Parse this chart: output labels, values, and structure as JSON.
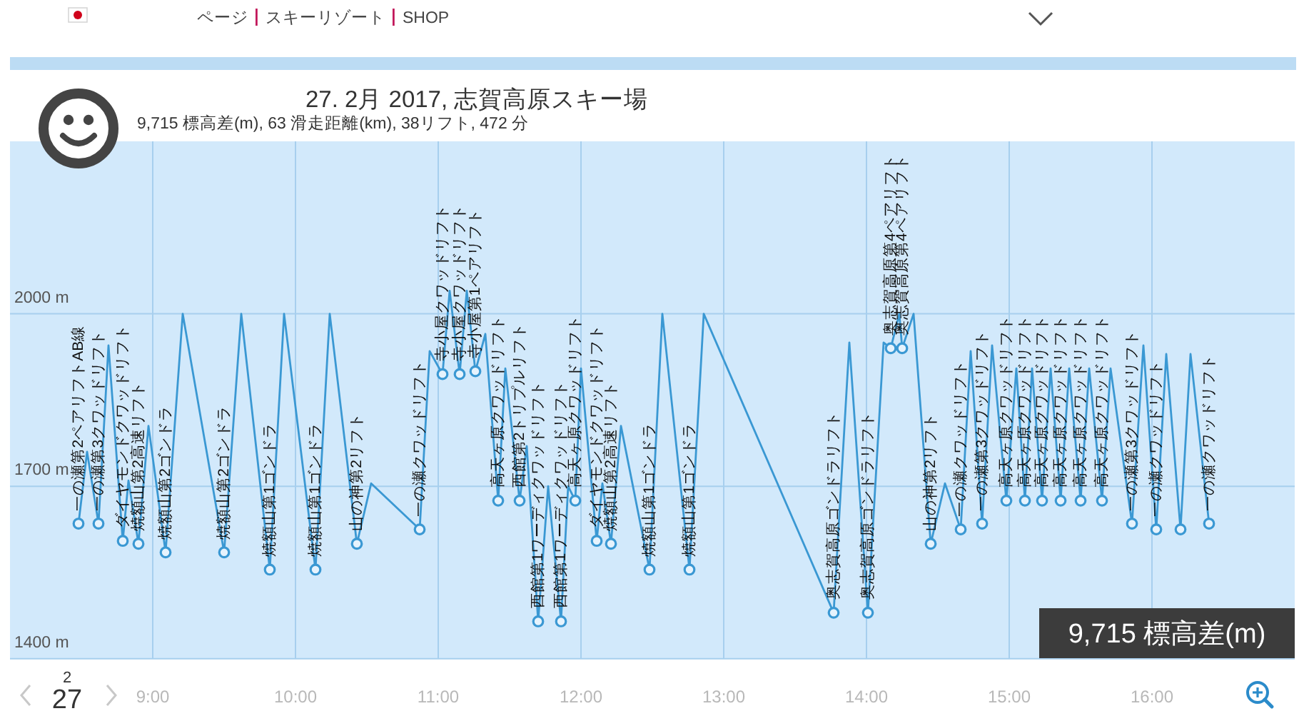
{
  "chart_data": {
    "type": "line",
    "title": "27. 2月 2017, 志賀高原スキー場",
    "subtitle": "9,715 標高差(m), 63 滑走距離(km), 38リフト, 472 分",
    "series": [
      {
        "type": "line",
        "color": "#3a98d3",
        "x": [
          8.48,
          8.54,
          8.62,
          8.69,
          8.79,
          8.83,
          8.9,
          8.97,
          9.09,
          9.21,
          9.5,
          9.62,
          9.82,
          9.92,
          10.14,
          10.24,
          10.43,
          10.53,
          10.87,
          10.94,
          11.03,
          11.08,
          11.15,
          11.2,
          11.26,
          11.33,
          11.42,
          11.47,
          11.57,
          11.62,
          11.7,
          11.77,
          11.86,
          11.91,
          11.96,
          12.0,
          12.11,
          12.15,
          12.21,
          12.28,
          12.48,
          12.57,
          12.76,
          12.86,
          13.77,
          13.88,
          14.01,
          14.12,
          14.17,
          14.23,
          14.25,
          14.33,
          14.45,
          14.55,
          14.66,
          14.73,
          14.81,
          14.88,
          14.98,
          15.05,
          15.11,
          15.16,
          15.23,
          15.29,
          15.36,
          15.42,
          15.5,
          15.56,
          15.65,
          15.71,
          15.86,
          15.94,
          16.03,
          16.1,
          16.2,
          16.27,
          16.4
        ],
        "values": [
          1635,
          1760,
          1635,
          1945,
          1605,
          1710,
          1600,
          1805,
          1585,
          2000,
          1585,
          2000,
          1555,
          2000,
          1555,
          2000,
          1600,
          1705,
          1625,
          1935,
          1895,
          2040,
          1895,
          2040,
          1900,
          1965,
          1675,
          1905,
          1675,
          1770,
          1465,
          1700,
          1465,
          1700,
          1675,
          1905,
          1605,
          1705,
          1600,
          1805,
          1555,
          2000,
          1555,
          2000,
          1480,
          1950,
          1480,
          1950,
          1940,
          2000,
          1940,
          2000,
          1600,
          1705,
          1625,
          1935,
          1635,
          1945,
          1675,
          1905,
          1675,
          1905,
          1675,
          1905,
          1675,
          1905,
          1675,
          1905,
          1675,
          1905,
          1635,
          1945,
          1625,
          1930,
          1625,
          1930,
          1635
        ]
      },
      {
        "type": "scatter",
        "color": "#3a98d3",
        "marker": "circle",
        "x": [
          8.48,
          8.62,
          8.79,
          8.9,
          9.09,
          9.5,
          9.82,
          10.14,
          10.43,
          10.87,
          11.03,
          11.15,
          11.26,
          11.42,
          11.57,
          11.7,
          11.86,
          11.96,
          12.11,
          12.21,
          12.48,
          12.76,
          13.77,
          14.01,
          14.17,
          14.25,
          14.45,
          14.66,
          14.81,
          14.98,
          15.11,
          15.23,
          15.36,
          15.5,
          15.65,
          15.86,
          16.03,
          16.2,
          16.4
        ],
        "values": [
          1635,
          1635,
          1605,
          1600,
          1585,
          1585,
          1555,
          1555,
          1600,
          1625,
          1895,
          1895,
          1900,
          1675,
          1675,
          1465,
          1465,
          1675,
          1605,
          1600,
          1555,
          1555,
          1480,
          1480,
          1940,
          1940,
          1600,
          1625,
          1635,
          1675,
          1675,
          1675,
          1675,
          1675,
          1675,
          1635,
          1625,
          1625,
          1635
        ]
      }
    ],
    "xlim": [
      8,
      17
    ],
    "xticks": [
      {
        "value": 9,
        "label": "9:00"
      },
      {
        "value": 10,
        "label": "10:00"
      },
      {
        "value": 11,
        "label": "11:00"
      },
      {
        "value": 12,
        "label": "12:00"
      },
      {
        "value": 13,
        "label": "13:00"
      },
      {
        "value": 14,
        "label": "14:00"
      },
      {
        "value": 15,
        "label": "15:00"
      },
      {
        "value": 16,
        "label": "16:00"
      }
    ],
    "ylim": [
      1400,
      2300
    ],
    "yticks": [
      {
        "value": 1400,
        "label": "1400 m"
      },
      {
        "value": 1700,
        "label": "1700 m"
      },
      {
        "value": 2000,
        "label": "2000 m"
      }
    ],
    "grid": true,
    "annotations": [
      {
        "text": "一の瀬第2ペアリフトAB線",
        "x": 8.48,
        "y": 1635
      },
      {
        "text": "一の瀬第3クワッドリフト",
        "x": 8.62,
        "y": 1635
      },
      {
        "text": "ダイヤモンドクワッドリフト",
        "x": 8.79,
        "y": 1605
      },
      {
        "text": "焼額山第2高速リフト",
        "x": 8.9,
        "y": 1600
      },
      {
        "text": "焼額山第2ゴンドラ",
        "x": 9.09,
        "y": 1585
      },
      {
        "text": "焼額山第2ゴンドラ",
        "x": 9.5,
        "y": 1585
      },
      {
        "text": "焼額山第1ゴンドラ",
        "x": 9.82,
        "y": 1555
      },
      {
        "text": "焼額山第1ゴンドラ",
        "x": 10.14,
        "y": 1555
      },
      {
        "text": "山の神第2リフト",
        "x": 10.43,
        "y": 1600
      },
      {
        "text": "一の瀬クワッドリフト",
        "x": 10.87,
        "y": 1625
      },
      {
        "text": "寺小屋クワッドリフト",
        "x": 11.03,
        "y": 1895
      },
      {
        "text": "寺小屋クワッドリフト",
        "x": 11.15,
        "y": 1895
      },
      {
        "text": "寺小屋第1ペアリフト",
        "x": 11.26,
        "y": 1900
      },
      {
        "text": "高天ヶ原クワッドリフト",
        "x": 11.42,
        "y": 1675
      },
      {
        "text": "西館第2トリプルリフト",
        "x": 11.57,
        "y": 1675
      },
      {
        "text": "西館第1ワーディクワッドリフト",
        "x": 11.7,
        "y": 1465
      },
      {
        "text": "西館第1ワーディクワッドリフト",
        "x": 11.86,
        "y": 1465
      },
      {
        "text": "高天ヶ原クワッドリフト",
        "x": 11.96,
        "y": 1675
      },
      {
        "text": "ダイヤモンドクワッドリフト",
        "x": 12.11,
        "y": 1605
      },
      {
        "text": "焼額山第2高速リフト",
        "x": 12.21,
        "y": 1600
      },
      {
        "text": "焼額山第1ゴンドラ",
        "x": 12.48,
        "y": 1555
      },
      {
        "text": "焼額山第1ゴンドラ",
        "x": 12.76,
        "y": 1555
      },
      {
        "text": "奥志賀高原ゴンドラリフト",
        "x": 13.77,
        "y": 1480
      },
      {
        "text": "奥志賀高原ゴンドラリフト",
        "x": 14.01,
        "y": 1480
      },
      {
        "text": "奥志賀高原第4ペアリフト",
        "x": 14.17,
        "y": 1940
      },
      {
        "text": "奥志賀高原第4ペアリフト",
        "x": 14.25,
        "y": 1940
      },
      {
        "text": "山の神第2リフト",
        "x": 14.45,
        "y": 1600
      },
      {
        "text": "一の瀬クワッドリフト",
        "x": 14.66,
        "y": 1625
      },
      {
        "text": "一の瀬第3クワッドリフト",
        "x": 14.81,
        "y": 1635
      },
      {
        "text": "高天ヶ原クワッドリフト",
        "x": 14.98,
        "y": 1675
      },
      {
        "text": "高天ヶ原クワッドリフト",
        "x": 15.11,
        "y": 1675
      },
      {
        "text": "高天ヶ原クワッドリフト",
        "x": 15.23,
        "y": 1675
      },
      {
        "text": "高天ヶ原クワッドリフト",
        "x": 15.36,
        "y": 1675
      },
      {
        "text": "高天ヶ原クワッドリフト",
        "x": 15.5,
        "y": 1675
      },
      {
        "text": "高天ヶ原クワッドリフト",
        "x": 15.65,
        "y": 1675
      },
      {
        "text": "一の瀬第3クワッドリフト",
        "x": 15.86,
        "y": 1635
      },
      {
        "text": "一の瀬クワッドリフト",
        "x": 16.03,
        "y": 1625
      },
      {
        "text": "一の瀬クワッドリフト",
        "x": 16.4,
        "y": 1635
      },
      "ページ",
      "スキーリゾート",
      "SHOP",
      "9,715 標高差(m)",
      "2",
      "27"
    ]
  }
}
